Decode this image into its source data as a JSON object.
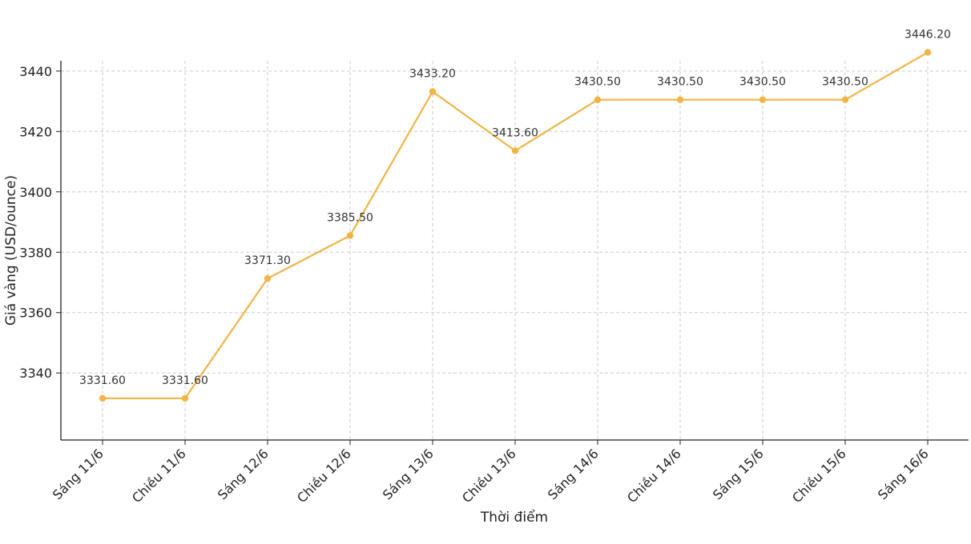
{
  "chart_data": {
    "type": "line",
    "title": "",
    "xlabel": "Thời điểm",
    "ylabel": "Giá vàng (USD/ounce)",
    "categories": [
      "Sáng 11/6",
      "Chiều 11/6",
      "Sáng 12/6",
      "Chiều 12/6",
      "Sáng 13/6",
      "Chiều 13/6",
      "Sáng 14/6",
      "Chiều 14/6",
      "Sáng 15/6",
      "Chiều 15/6",
      "Sáng 16/6"
    ],
    "series": [
      {
        "values": [
          3331.6,
          3331.6,
          3371.3,
          3385.5,
          3433.2,
          3413.6,
          3430.5,
          3430.5,
          3430.5,
          3430.5,
          3446.2
        ],
        "labels": [
          "3331.60",
          "3331.60",
          "3371.30",
          "3385.50",
          "3433.20",
          "3413.60",
          "3430.50",
          "3430.50",
          "3430.50",
          "3430.50",
          "3446.20"
        ],
        "color": "#F0B544"
      }
    ],
    "ylim": [
      3317.8,
      3443.4
    ],
    "yticks": [
      3340,
      3360,
      3380,
      3400,
      3420,
      3440
    ],
    "grid": true,
    "legend": "none"
  }
}
